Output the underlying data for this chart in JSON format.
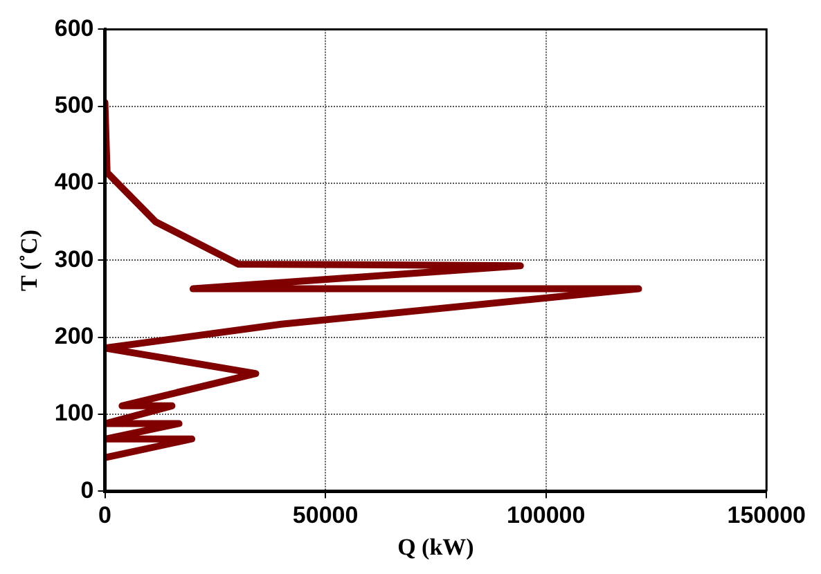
{
  "chart_data": {
    "type": "line",
    "xlabel": "Q (kW)",
    "ylabel": "T (˚C)",
    "x": [
      0,
      500,
      11500,
      30300,
      94200,
      20000,
      121000,
      40000,
      0,
      34200,
      3900,
      15200,
      300,
      16800,
      300,
      19700,
      300
    ],
    "series": [
      {
        "color": "#800000",
        "values": [
          505,
          414,
          350,
          295,
          293,
          263,
          263,
          217,
          186,
          153,
          111,
          111,
          88,
          88,
          68,
          68,
          44
        ]
      }
    ],
    "xlim": [
      0,
      150000
    ],
    "xticks": [
      0,
      50000,
      100000,
      150000
    ],
    "ylim": [
      0,
      600
    ],
    "yticks": [
      0,
      100,
      200,
      300,
      400,
      500,
      600
    ],
    "grid": true,
    "legend": false,
    "marker": "none",
    "line_style": "solid"
  }
}
